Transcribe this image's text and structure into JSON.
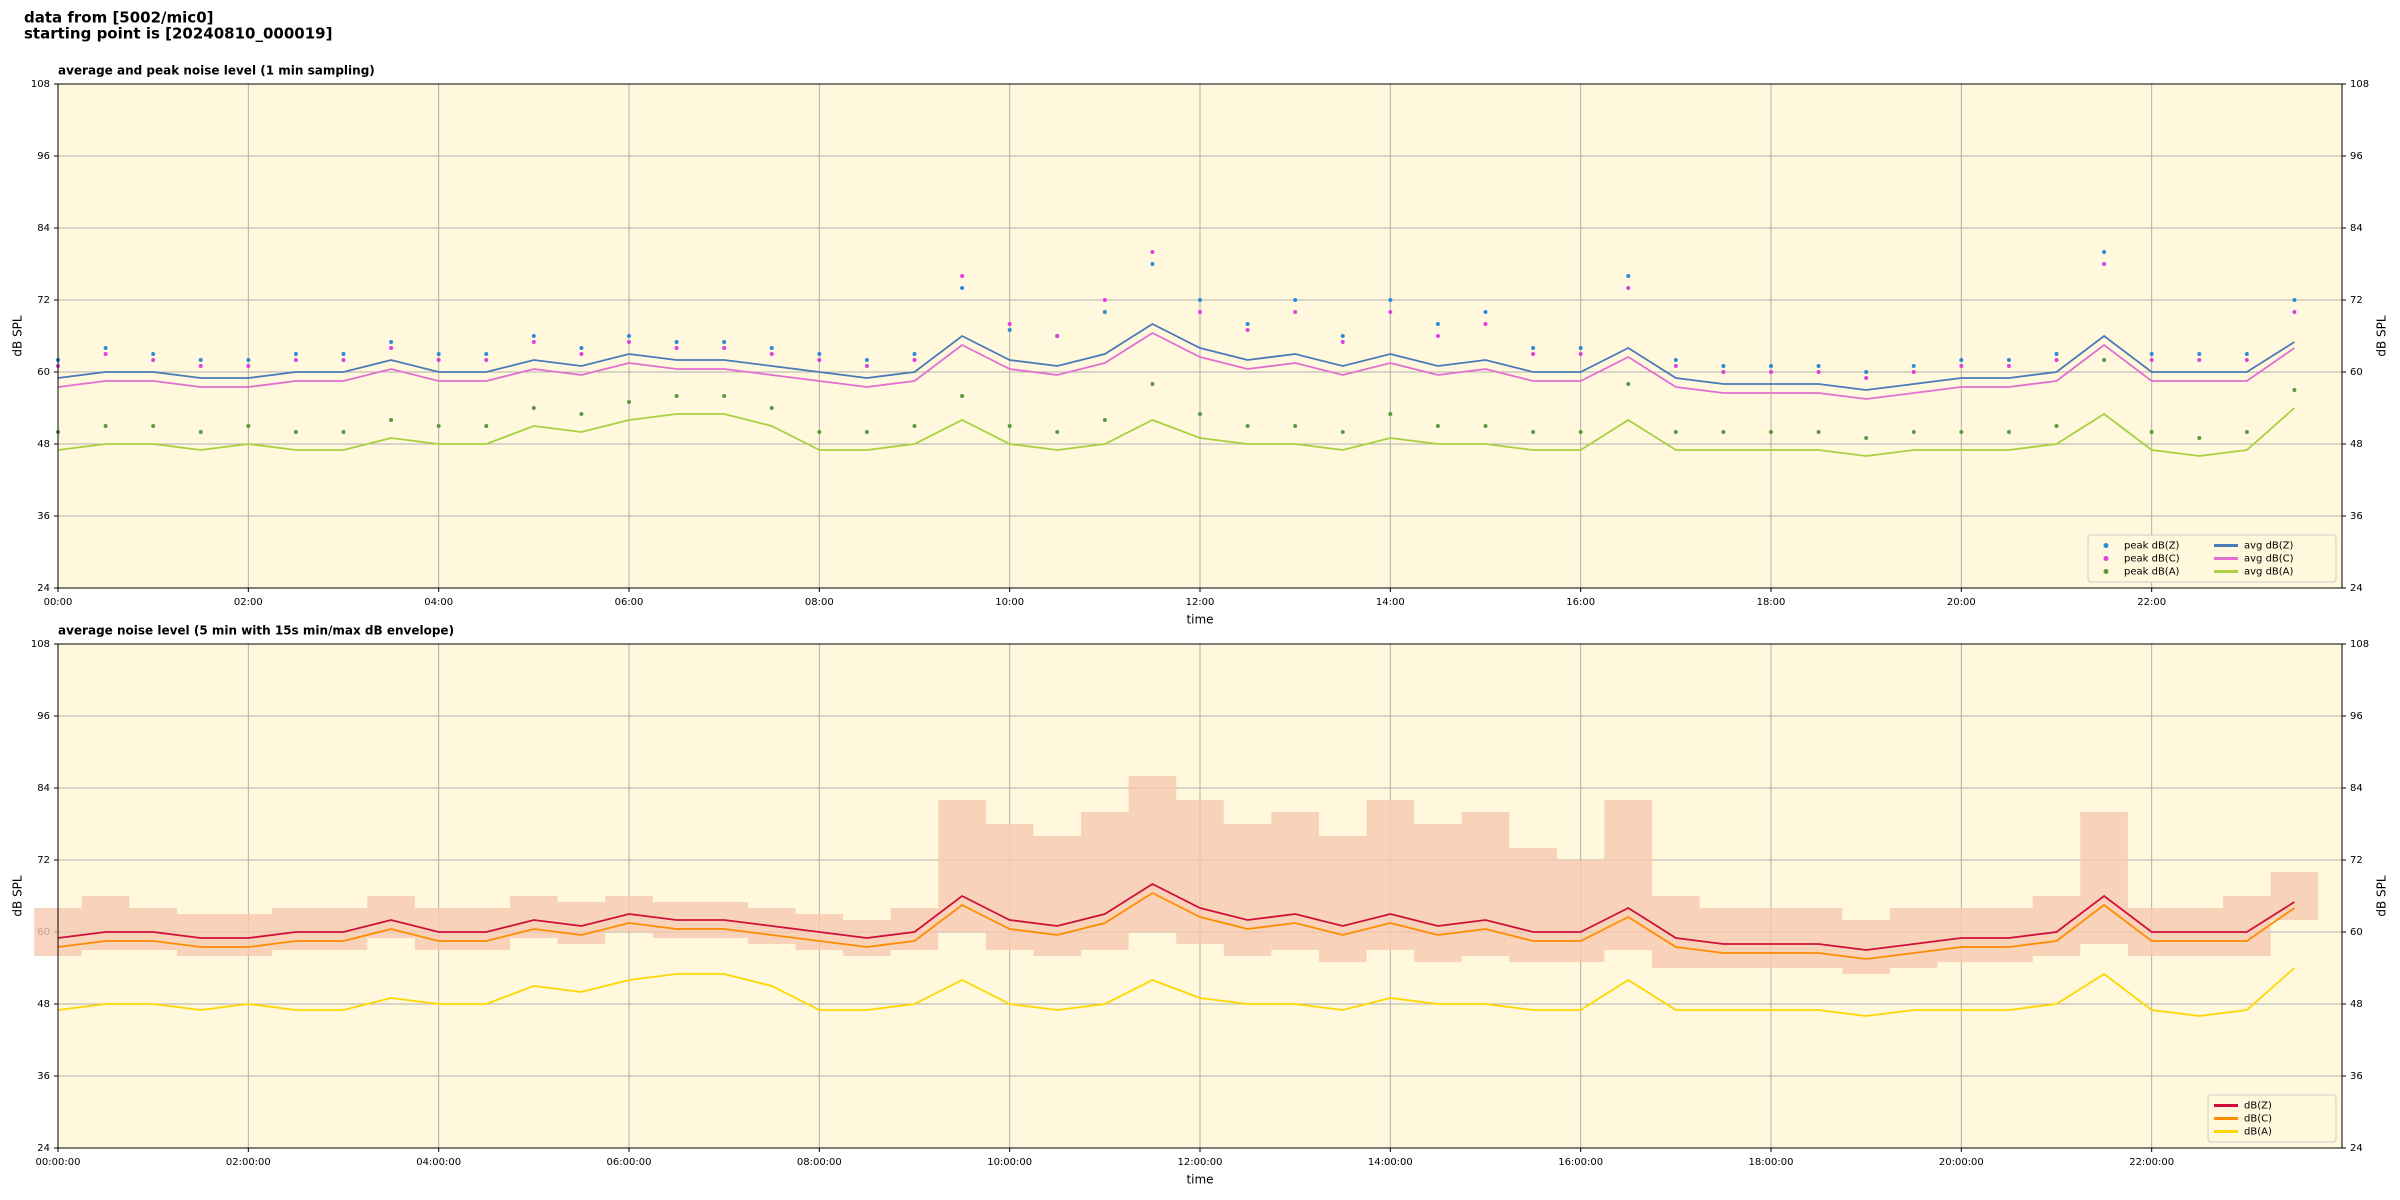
{
  "header": {
    "line1": "data from [5002/mic0]",
    "line2": "starting point is [20240810_000019]"
  },
  "chart_data": [
    {
      "type": "line",
      "title": "average and peak noise level (1 min sampling)",
      "xlabel": "time",
      "ylabel": "dB SPL",
      "x": [
        0,
        0.5,
        1,
        1.5,
        2,
        2.5,
        3,
        3.5,
        4,
        4.5,
        5,
        5.5,
        6,
        6.5,
        7,
        7.5,
        8,
        8.5,
        9,
        9.5,
        10,
        10.5,
        11,
        11.5,
        12,
        12.5,
        13,
        13.5,
        14,
        14.5,
        15,
        15.5,
        16,
        16.5,
        17,
        17.5,
        18,
        18.5,
        19,
        19.5,
        20,
        20.5,
        21,
        21.5,
        22,
        22.5,
        23,
        23.5
      ],
      "xlim": [
        0,
        24
      ],
      "xticks": [
        {
          "value": 0,
          "label": "00:00"
        },
        {
          "value": 2,
          "label": "02:00"
        },
        {
          "value": 4,
          "label": "04:00"
        },
        {
          "value": 6,
          "label": "06:00"
        },
        {
          "value": 8,
          "label": "08:00"
        },
        {
          "value": 10,
          "label": "10:00"
        },
        {
          "value": 12,
          "label": "12:00"
        },
        {
          "value": 14,
          "label": "14:00"
        },
        {
          "value": 16,
          "label": "16:00"
        },
        {
          "value": 18,
          "label": "18:00"
        },
        {
          "value": 20,
          "label": "20:00"
        },
        {
          "value": 22,
          "label": "22:00"
        }
      ],
      "ylim": [
        24,
        108
      ],
      "yticks": [
        24,
        36,
        48,
        60,
        72,
        84,
        96,
        108
      ],
      "grid": true,
      "legend": "lower right",
      "legend_columns": 2,
      "background": "#fff8dc",
      "series": [
        {
          "name": "peak dB(Z)",
          "style": "scatter",
          "color": "#2e8bd8",
          "values": [
            62,
            64,
            63,
            62,
            62,
            63,
            63,
            65,
            63,
            63,
            66,
            64,
            66,
            65,
            65,
            64,
            63,
            62,
            63,
            74,
            67,
            66,
            70,
            78,
            72,
            68,
            72,
            66,
            72,
            68,
            70,
            64,
            64,
            76,
            62,
            61,
            61,
            61,
            60,
            61,
            62,
            62,
            63,
            80,
            63,
            63,
            63,
            72
          ]
        },
        {
          "name": "peak dB(C)",
          "style": "scatter",
          "color": "#e040e0",
          "values": [
            61,
            63,
            62,
            61,
            61,
            62,
            62,
            64,
            62,
            62,
            65,
            63,
            65,
            64,
            64,
            63,
            62,
            61,
            62,
            76,
            68,
            66,
            72,
            80,
            70,
            67,
            70,
            65,
            70,
            66,
            68,
            63,
            63,
            74,
            61,
            60,
            60,
            60,
            59,
            60,
            61,
            61,
            62,
            78,
            62,
            62,
            62,
            70
          ]
        },
        {
          "name": "peak dB(A)",
          "style": "scatter",
          "color": "#5a9a40",
          "values": [
            50,
            51,
            51,
            50,
            51,
            50,
            50,
            52,
            51,
            51,
            54,
            53,
            55,
            56,
            56,
            54,
            50,
            50,
            51,
            56,
            51,
            50,
            52,
            58,
            53,
            51,
            51,
            50,
            53,
            51,
            51,
            50,
            50,
            58,
            50,
            50,
            50,
            50,
            49,
            50,
            50,
            50,
            51,
            62,
            50,
            49,
            50,
            57
          ]
        },
        {
          "name": "avg dB(Z)",
          "style": "line",
          "color": "#4a7ab8",
          "values": [
            59,
            60,
            60,
            59,
            59,
            60,
            60,
            62,
            60,
            60,
            62,
            61,
            63,
            62,
            62,
            61,
            60,
            59,
            60,
            66,
            62,
            61,
            63,
            68,
            64,
            62,
            63,
            61,
            63,
            61,
            62,
            60,
            60,
            64,
            59,
            58,
            58,
            58,
            57,
            58,
            59,
            59,
            60,
            66,
            60,
            60,
            60,
            65
          ]
        },
        {
          "name": "avg dB(C)",
          "style": "line",
          "color": "#e070d0",
          "values": [
            57.5,
            58.5,
            58.5,
            57.5,
            57.5,
            58.5,
            58.5,
            60.5,
            58.5,
            58.5,
            60.5,
            59.5,
            61.5,
            60.5,
            60.5,
            59.5,
            58.5,
            57.5,
            58.5,
            64.5,
            60.5,
            59.5,
            61.5,
            66.5,
            62.5,
            60.5,
            61.5,
            59.5,
            61.5,
            59.5,
            60.5,
            58.5,
            58.5,
            62.5,
            57.5,
            56.5,
            56.5,
            56.5,
            55.5,
            56.5,
            57.5,
            57.5,
            58.5,
            64.5,
            58.5,
            58.5,
            58.5,
            64
          ]
        },
        {
          "name": "avg dB(A)",
          "style": "line",
          "color": "#a8d040",
          "values": [
            47,
            48,
            48,
            47,
            48,
            47,
            47,
            49,
            48,
            48,
            51,
            50,
            52,
            53,
            53,
            51,
            47,
            47,
            48,
            52,
            48,
            47,
            48,
            52,
            49,
            48,
            48,
            47,
            49,
            48,
            48,
            47,
            47,
            52,
            47,
            47,
            47,
            47,
            46,
            47,
            47,
            47,
            48,
            53,
            47,
            46,
            47,
            54
          ]
        }
      ]
    },
    {
      "type": "line",
      "title": "average noise level (5 min with 15s min/max dB envelope)",
      "xlabel": "time",
      "ylabel": "dB SPL",
      "x": [
        0,
        0.5,
        1,
        1.5,
        2,
        2.5,
        3,
        3.5,
        4,
        4.5,
        5,
        5.5,
        6,
        6.5,
        7,
        7.5,
        8,
        8.5,
        9,
        9.5,
        10,
        10.5,
        11,
        11.5,
        12,
        12.5,
        13,
        13.5,
        14,
        14.5,
        15,
        15.5,
        16,
        16.5,
        17,
        17.5,
        18,
        18.5,
        19,
        19.5,
        20,
        20.5,
        21,
        21.5,
        22,
        22.5,
        23,
        23.5
      ],
      "xlim": [
        0,
        24
      ],
      "xticks": [
        {
          "value": 0,
          "label": "00:00:00"
        },
        {
          "value": 2,
          "label": "02:00:00"
        },
        {
          "value": 4,
          "label": "04:00:00"
        },
        {
          "value": 6,
          "label": "06:00:00"
        },
        {
          "value": 8,
          "label": "08:00:00"
        },
        {
          "value": 10,
          "label": "10:00:00"
        },
        {
          "value": 12,
          "label": "12:00:00"
        },
        {
          "value": 14,
          "label": "14:00:00"
        },
        {
          "value": 16,
          "label": "16:00:00"
        },
        {
          "value": 18,
          "label": "18:00:00"
        },
        {
          "value": 20,
          "label": "20:00:00"
        },
        {
          "value": 22,
          "label": "22:00:00"
        }
      ],
      "ylim": [
        24,
        108
      ],
      "yticks": [
        24,
        36,
        48,
        60,
        72,
        84,
        96,
        108
      ],
      "grid": true,
      "legend": "lower right",
      "legend_columns": 1,
      "background": "#fff8dc",
      "envelope": {
        "color": "#f6c8b0",
        "high": [
          64,
          66,
          64,
          63,
          63,
          64,
          64,
          66,
          64,
          64,
          66,
          65,
          66,
          65,
          65,
          64,
          63,
          62,
          64,
          82,
          78,
          76,
          80,
          86,
          82,
          78,
          80,
          76,
          82,
          78,
          80,
          74,
          72,
          82,
          66,
          64,
          64,
          64,
          62,
          64,
          64,
          64,
          66,
          80,
          64,
          64,
          66,
          70
        ],
        "low": [
          56,
          57,
          57,
          56,
          56,
          57,
          57,
          59,
          57,
          57,
          59,
          58,
          60,
          59,
          59,
          58,
          57,
          56,
          57,
          60,
          57,
          56,
          57,
          60,
          58,
          56,
          57,
          55,
          57,
          55,
          56,
          55,
          55,
          57,
          54,
          54,
          54,
          54,
          53,
          54,
          55,
          55,
          56,
          58,
          56,
          56,
          56,
          62
        ]
      },
      "series": [
        {
          "name": "dB(Z)",
          "style": "line",
          "color": "#d0103a",
          "values": [
            59,
            60,
            60,
            59,
            59,
            60,
            60,
            62,
            60,
            60,
            62,
            61,
            63,
            62,
            62,
            61,
            60,
            59,
            60,
            66,
            62,
            61,
            63,
            68,
            64,
            62,
            63,
            61,
            63,
            61,
            62,
            60,
            60,
            64,
            59,
            58,
            58,
            58,
            57,
            58,
            59,
            59,
            60,
            66,
            60,
            60,
            60,
            65
          ]
        },
        {
          "name": "dB(C)",
          "style": "line",
          "color": "#ff8c00",
          "values": [
            57.5,
            58.5,
            58.5,
            57.5,
            57.5,
            58.5,
            58.5,
            60.5,
            58.5,
            58.5,
            60.5,
            59.5,
            61.5,
            60.5,
            60.5,
            59.5,
            58.5,
            57.5,
            58.5,
            64.5,
            60.5,
            59.5,
            61.5,
            66.5,
            62.5,
            60.5,
            61.5,
            59.5,
            61.5,
            59.5,
            60.5,
            58.5,
            58.5,
            62.5,
            57.5,
            56.5,
            56.5,
            56.5,
            55.5,
            56.5,
            57.5,
            57.5,
            58.5,
            64.5,
            58.5,
            58.5,
            58.5,
            64
          ]
        },
        {
          "name": "dB(A)",
          "style": "line",
          "color": "#ffd700",
          "values": [
            47,
            48,
            48,
            47,
            48,
            47,
            47,
            49,
            48,
            48,
            51,
            50,
            52,
            53,
            53,
            51,
            47,
            47,
            48,
            52,
            48,
            47,
            48,
            52,
            49,
            48,
            48,
            47,
            49,
            48,
            48,
            47,
            47,
            52,
            47,
            47,
            47,
            47,
            46,
            47,
            47,
            47,
            48,
            53,
            47,
            46,
            47,
            54
          ]
        }
      ]
    }
  ]
}
